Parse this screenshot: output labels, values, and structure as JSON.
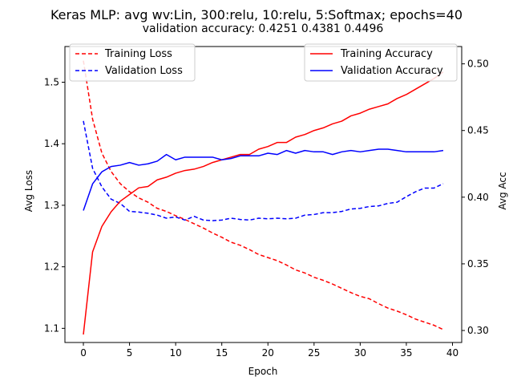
{
  "chart_data": {
    "type": "line",
    "title": "Keras MLP: avg wv:Lin, 300:relu, 10:relu, 5:Softmax; epochs=40",
    "subtitle": "validation accuracy:  0.4251  0.4381  0.4496",
    "xlabel": "Epoch",
    "ylabel_left": "Avg Loss",
    "ylabel_right": "Avg Acc",
    "xlim": [
      -2,
      41
    ],
    "ylim_left": [
      1.077,
      1.558
    ],
    "ylim_right": [
      0.291,
      0.513
    ],
    "x_ticks": [
      0,
      5,
      10,
      15,
      20,
      25,
      30,
      35,
      40
    ],
    "y_ticks_left": [
      1.1,
      1.2,
      1.3,
      1.4,
      1.5
    ],
    "y_ticks_right": [
      0.3,
      0.35,
      0.4,
      0.45,
      0.5
    ],
    "x_tick_labels": [
      "0",
      "5",
      "10",
      "15",
      "20",
      "25",
      "30",
      "35",
      "40"
    ],
    "y_tick_labels_left": [
      "1.1",
      "1.2",
      "1.3",
      "1.4",
      "1.5"
    ],
    "y_tick_labels_right": [
      "0.30",
      "0.35",
      "0.40",
      "0.45",
      "0.50"
    ],
    "grid": false,
    "x": [
      0,
      1,
      2,
      3,
      4,
      5,
      6,
      7,
      8,
      9,
      10,
      11,
      12,
      13,
      14,
      15,
      16,
      17,
      18,
      19,
      20,
      21,
      22,
      23,
      24,
      25,
      26,
      27,
      28,
      29,
      30,
      31,
      32,
      33,
      34,
      35,
      36,
      37,
      38,
      39
    ],
    "loss_legend": {
      "placement": "top-left",
      "entries": [
        "Training Loss",
        "Validation Loss"
      ]
    },
    "acc_legend": {
      "placement": "top-right",
      "entries": [
        "Training Accuracy",
        "Validation Accuracy"
      ]
    },
    "series": [
      {
        "name": "Training Loss",
        "axis": "left",
        "color": "#ff0000",
        "dash": "dashed",
        "values": [
          1.535,
          1.44,
          1.385,
          1.355,
          1.335,
          1.322,
          1.312,
          1.305,
          1.295,
          1.29,
          1.283,
          1.277,
          1.27,
          1.263,
          1.255,
          1.248,
          1.24,
          1.235,
          1.228,
          1.22,
          1.215,
          1.21,
          1.203,
          1.195,
          1.19,
          1.183,
          1.178,
          1.172,
          1.165,
          1.158,
          1.152,
          1.148,
          1.14,
          1.133,
          1.128,
          1.122,
          1.115,
          1.11,
          1.105,
          1.098
        ]
      },
      {
        "name": "Validation Loss",
        "axis": "left",
        "color": "#0000ff",
        "dash": "dashed",
        "values": [
          1.437,
          1.36,
          1.33,
          1.31,
          1.303,
          1.29,
          1.289,
          1.287,
          1.284,
          1.279,
          1.281,
          1.276,
          1.282,
          1.276,
          1.275,
          1.276,
          1.279,
          1.277,
          1.276,
          1.279,
          1.278,
          1.279,
          1.278,
          1.279,
          1.284,
          1.285,
          1.288,
          1.288,
          1.29,
          1.294,
          1.295,
          1.298,
          1.299,
          1.303,
          1.305,
          1.314,
          1.322,
          1.328,
          1.328,
          1.335
        ]
      },
      {
        "name": "Training Accuracy",
        "axis": "right",
        "color": "#ff0000",
        "dash": "solid",
        "values": [
          0.297,
          0.359,
          0.378,
          0.389,
          0.397,
          0.402,
          0.407,
          0.408,
          0.413,
          0.415,
          0.418,
          0.42,
          0.421,
          0.423,
          0.426,
          0.428,
          0.43,
          0.432,
          0.432,
          0.436,
          0.438,
          0.441,
          0.441,
          0.445,
          0.447,
          0.45,
          0.452,
          0.455,
          0.457,
          0.461,
          0.463,
          0.466,
          0.468,
          0.47,
          0.474,
          0.477,
          0.481,
          0.485,
          0.489,
          0.494
        ]
      },
      {
        "name": "Validation Accuracy",
        "axis": "right",
        "color": "#0000ff",
        "dash": "solid",
        "values": [
          0.39,
          0.41,
          0.419,
          0.423,
          0.424,
          0.426,
          0.424,
          0.425,
          0.427,
          0.432,
          0.428,
          0.43,
          0.43,
          0.43,
          0.43,
          0.428,
          0.429,
          0.431,
          0.431,
          0.431,
          0.433,
          0.432,
          0.435,
          0.433,
          0.435,
          0.434,
          0.434,
          0.432,
          0.434,
          0.435,
          0.434,
          0.435,
          0.436,
          0.436,
          0.435,
          0.434,
          0.434,
          0.434,
          0.434,
          0.435
        ]
      }
    ]
  }
}
